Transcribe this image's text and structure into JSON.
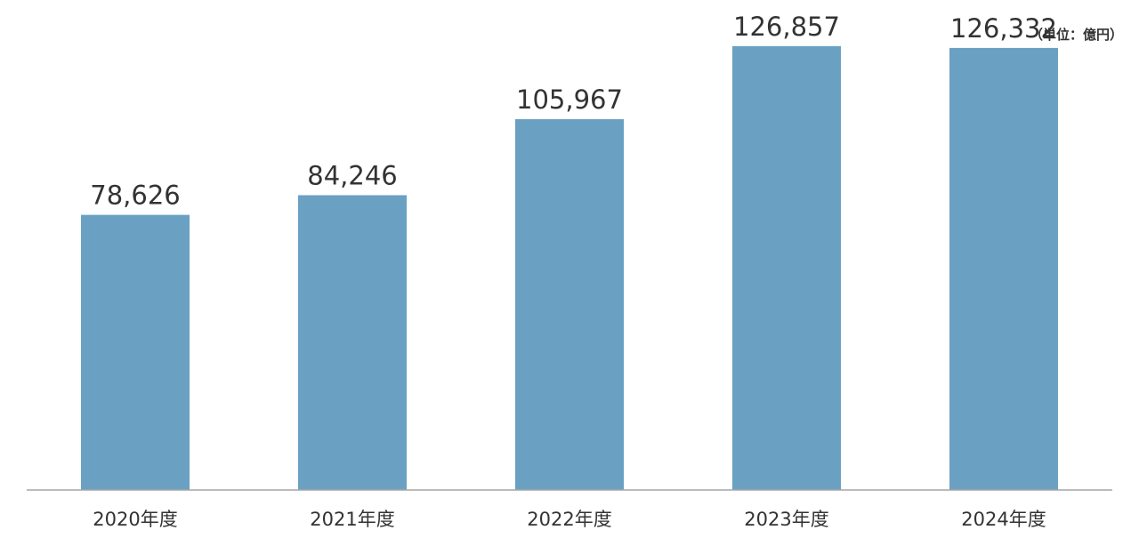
{
  "chart_data": {
    "type": "bar",
    "unit_label": "（単位：億円）",
    "categories": [
      "2020年度",
      "2021年度",
      "2022年度",
      "2023年度",
      "2024年度"
    ],
    "values": [
      78626,
      84246,
      105967,
      126857,
      126332
    ],
    "value_labels": [
      "78,626",
      "84,246",
      "105,967",
      "126,857",
      "126,332"
    ],
    "ylim": [
      0,
      138000
    ],
    "grid": false,
    "bar_color": "#6aa1c2",
    "axis_color": "#a6a6a6"
  }
}
